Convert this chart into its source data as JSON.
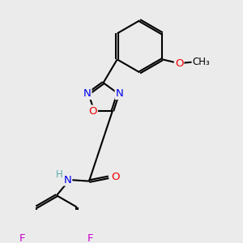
{
  "bg_color": "#ebebeb",
  "bond_color": "#000000",
  "bond_width": 1.5,
  "atom_colors": {
    "N": "#0000ee",
    "O": "#ee0000",
    "F": "#cc00cc",
    "H": "#5aadad",
    "C": "#000000"
  },
  "font_size_atom": 9.5,
  "font_size_small": 8.5
}
